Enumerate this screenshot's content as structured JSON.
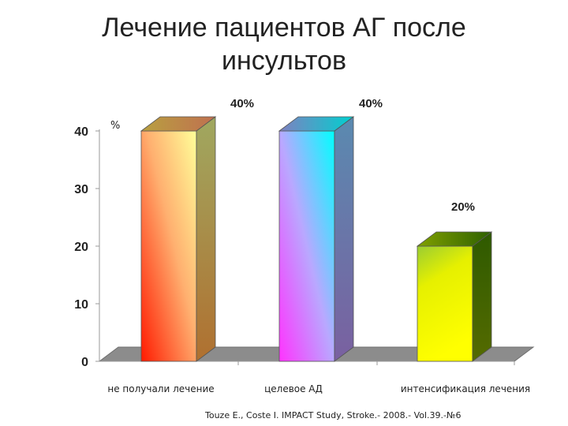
{
  "slide": {
    "title_line1": "Лечение пациентов АГ после",
    "title_line2": "инсультов",
    "source": "Touze E., Coste I. IMPACT Study, Stroke.- 2008.- Vol.39.-№6"
  },
  "chart_data": {
    "type": "bar",
    "title": "Лечение пациентов АГ после инсультов",
    "xlabel": "",
    "ylabel": "%",
    "categories": [
      "не получали лечение",
      "целевое АД",
      "интенсификация лечения"
    ],
    "values": [
      40,
      40,
      20
    ],
    "data_labels": [
      "40%",
      "40%",
      "20%"
    ],
    "ylim": [
      0,
      40
    ],
    "yticks": [
      0,
      10,
      20,
      30,
      40
    ],
    "grid": false,
    "legend": "none",
    "style": "3d-gradient-columns",
    "colors": [
      {
        "top": "#ffff99",
        "bottom": "#ff1a00",
        "side": "#9a9a60"
      },
      {
        "top": "#00ffff",
        "bottom": "#ff33ff",
        "side": "#6a7aa6"
      },
      {
        "top": "#2e8b00",
        "bottom": "#ffff00",
        "side": "#2e5500"
      }
    ]
  }
}
